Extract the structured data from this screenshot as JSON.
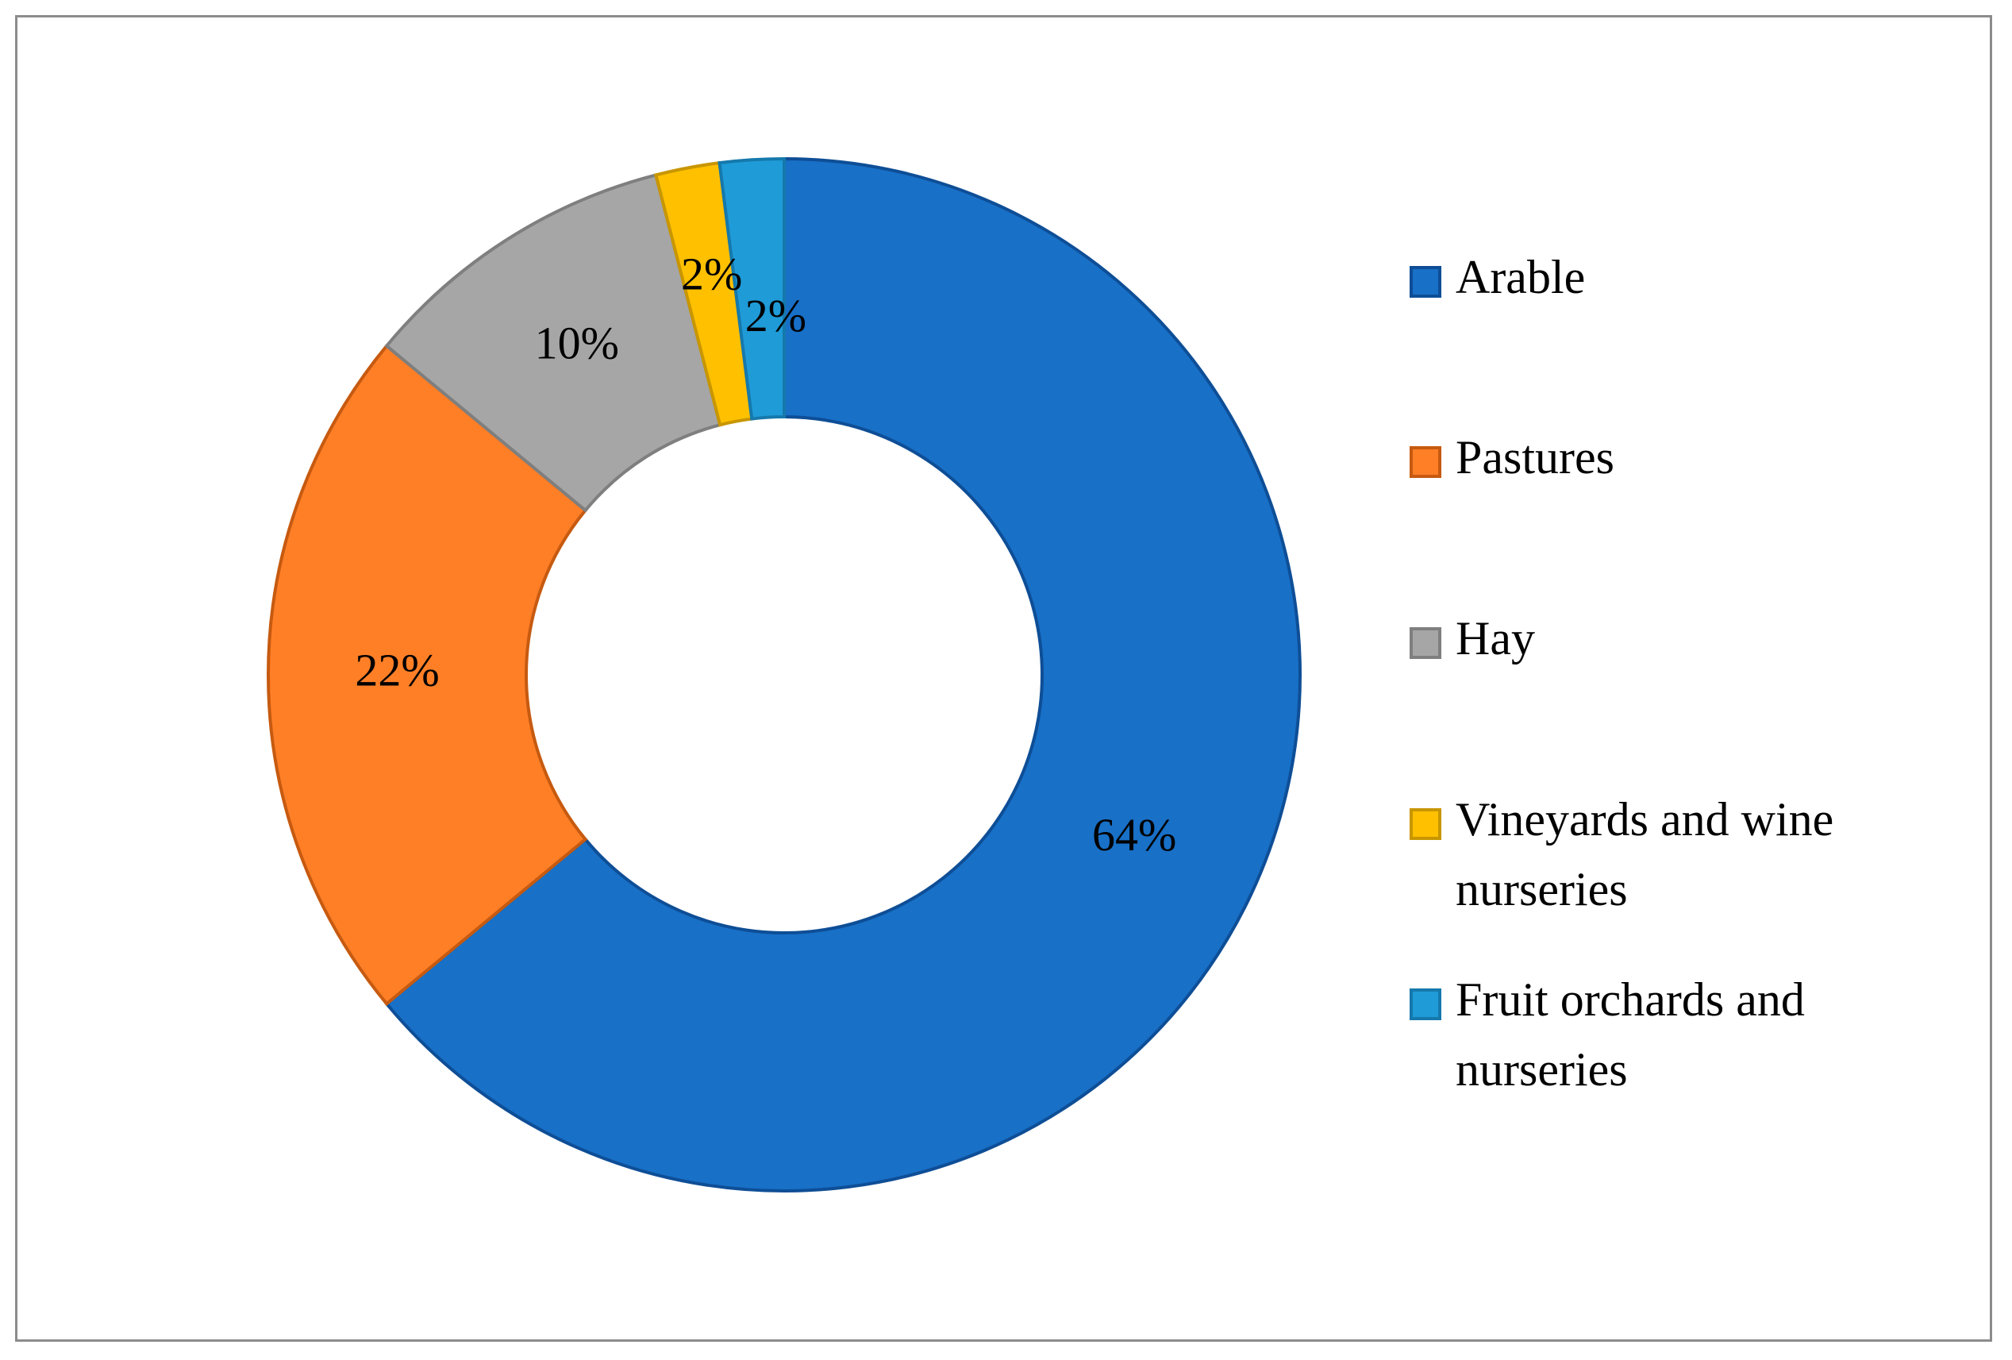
{
  "chart_data": {
    "type": "pie",
    "donut": true,
    "categories": [
      "Arable",
      "Pastures",
      "Hay",
      "Vineyards and wine nurseries",
      "Fruit orchards and nurseries"
    ],
    "values": [
      64,
      22,
      10,
      2,
      2
    ],
    "data_labels": [
      "64%",
      "22%",
      "10%",
      "2%",
      "2%"
    ],
    "colors": [
      "#1870C7",
      "#FF7F27",
      "#A6A6A6",
      "#FFC000",
      "#1F9BD8"
    ],
    "stroke_colors": [
      "#0E4E96",
      "#C65A10",
      "#7F7F7F",
      "#C89600",
      "#1579AC"
    ],
    "title": "",
    "legend": {
      "placement": "right",
      "items": [
        {
          "label_lines": [
            "Arable"
          ]
        },
        {
          "label_lines": [
            "Pastures"
          ]
        },
        {
          "label_lines": [
            "Hay"
          ]
        },
        {
          "label_lines": [
            "Vineyards and wine",
            "nurseries"
          ]
        },
        {
          "label_lines": [
            "Fruit orchards and",
            "nurseries"
          ]
        }
      ]
    }
  }
}
